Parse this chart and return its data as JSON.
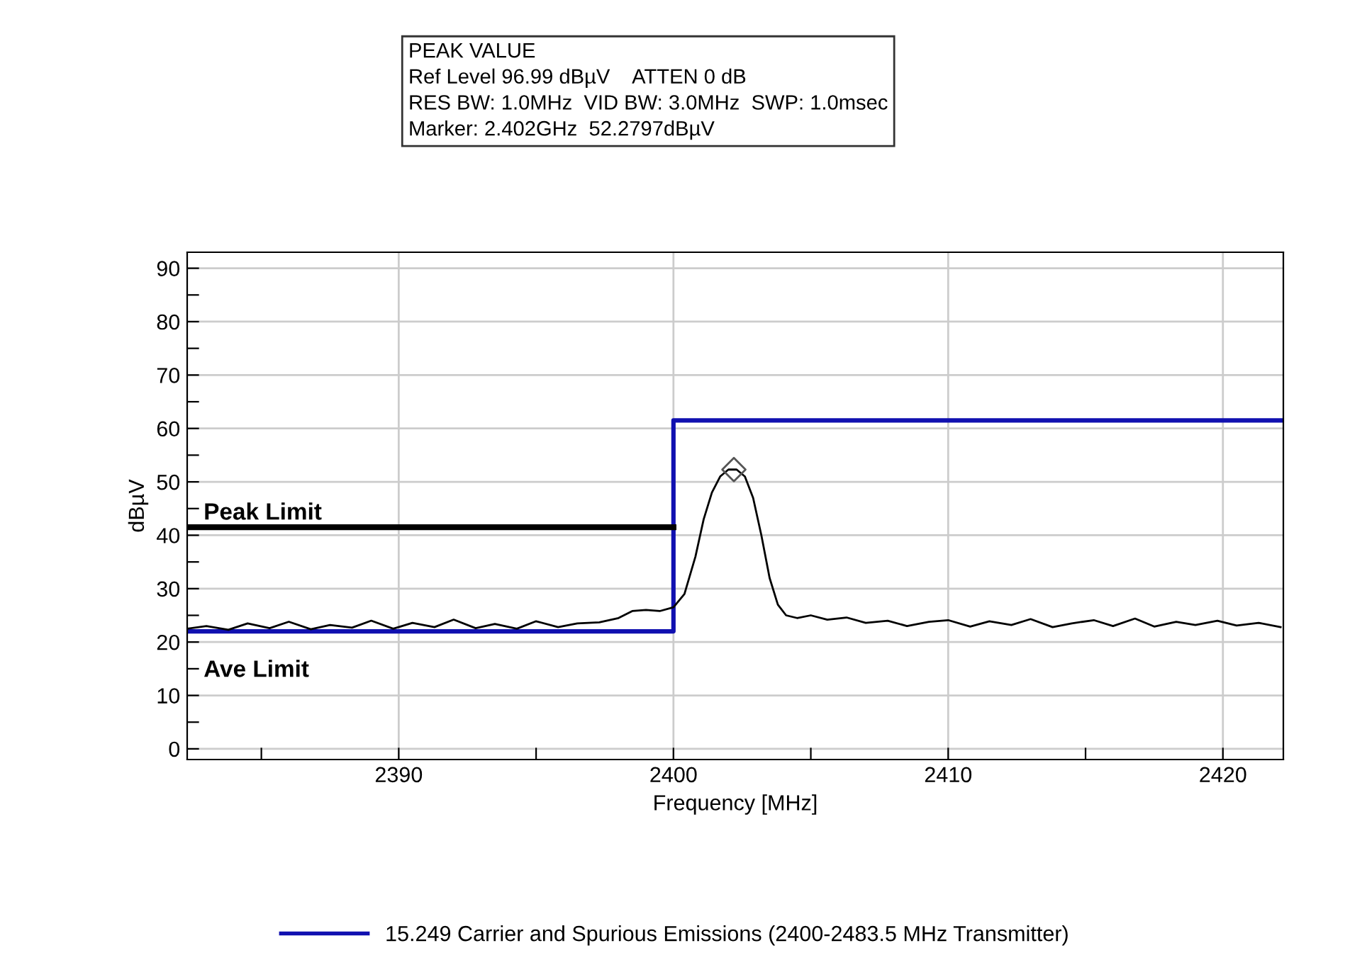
{
  "chart_data": {
    "type": "line",
    "xlabel": "Frequency [MHz]",
    "ylabel": "dBµV",
    "xlim": [
      2382.3,
      2422.2
    ],
    "ylim": [
      -2,
      93
    ],
    "xticks": [
      {
        "value": 2385,
        "label": null
      },
      2390,
      {
        "value": 2395,
        "label": null
      },
      2400,
      {
        "value": 2405,
        "label": null
      },
      2410,
      {
        "value": 2415,
        "label": null
      },
      2420
    ],
    "yticks": [
      0,
      {
        "value": 5,
        "label": null
      },
      10,
      {
        "value": 15,
        "label": null
      },
      20,
      {
        "value": 25,
        "label": null
      },
      30,
      {
        "value": 35,
        "label": null
      },
      40,
      {
        "value": 45,
        "label": null
      },
      50,
      {
        "value": 55,
        "label": null
      },
      60,
      {
        "value": 65,
        "label": null
      },
      70,
      {
        "value": 75,
        "label": null
      },
      80,
      {
        "value": 85,
        "label": null
      },
      90
    ],
    "grid": true,
    "legend": "bottom",
    "series": [
      {
        "type": "step",
        "name": "15.249 Carrier and Spurious Emissions (2400-2483.5 MHz Transmitter)",
        "color": "#1010b0",
        "x": [
          2382.3,
          2400,
          2422.2
        ],
        "values": [
          22,
          61.5,
          61.5
        ]
      },
      {
        "color": "#000000",
        "x": [
          2382.3,
          2400
        ],
        "values": [
          41.5,
          41.5
        ]
      },
      {
        "color": "#000000",
        "x": [
          2382.3,
          2383,
          2383.8,
          2384.5,
          2385.3,
          2386,
          2386.8,
          2387.5,
          2388.3,
          2389,
          2389.8,
          2390.5,
          2391.3,
          2392,
          2392.8,
          2393.5,
          2394.3,
          2395,
          2395.8,
          2396.5,
          2397.3,
          2398,
          2398.5,
          2399,
          2399.5,
          2400,
          2400.4,
          2400.8,
          2401.1,
          2401.4,
          2401.7,
          2402,
          2402.3,
          2402.6,
          2402.9,
          2403.2,
          2403.5,
          2403.8,
          2404.1,
          2404.5,
          2405,
          2405.6,
          2406.3,
          2407,
          2407.8,
          2408.5,
          2409.3,
          2410,
          2410.8,
          2411.5,
          2412.3,
          2413,
          2413.8,
          2414.5,
          2415.3,
          2416,
          2416.8,
          2417.5,
          2418.3,
          2419,
          2419.8,
          2420.5,
          2421.3,
          2422.1
        ],
        "values": [
          22.5,
          23,
          22.3,
          23.5,
          22.6,
          23.8,
          22.4,
          23.2,
          22.7,
          24,
          22.5,
          23.6,
          22.8,
          24.2,
          22.6,
          23.4,
          22.5,
          23.9,
          22.8,
          23.5,
          23.7,
          24.5,
          25.8,
          26,
          25.8,
          26.5,
          29,
          36,
          43,
          48,
          51,
          52.3,
          52.3,
          51,
          47,
          40,
          32,
          27,
          25,
          24.5,
          25,
          24.2,
          24.6,
          23.6,
          24,
          23,
          23.8,
          24.1,
          22.9,
          23.9,
          23.2,
          24.3,
          22.8,
          23.5,
          24.1,
          23,
          24.4,
          22.9,
          23.8,
          23.2,
          24,
          23.1,
          23.6,
          22.8
        ]
      },
      {
        "type": "scatter",
        "marker": "diamond",
        "color": "#555555",
        "x": [
          2402.2
        ],
        "values": [
          52.3
        ]
      }
    ],
    "annotations": [
      "Peak Limit",
      "Ave Limit",
      "PEAK VALUE\nRef Level 96.99 dBµV    ATTEN 0 dB\nRES BW: 1.0MHz  VID BW: 3.0MHz  SWP: 1.0msec\nMarker: 2.402GHz  52.2797dBµV"
    ]
  }
}
